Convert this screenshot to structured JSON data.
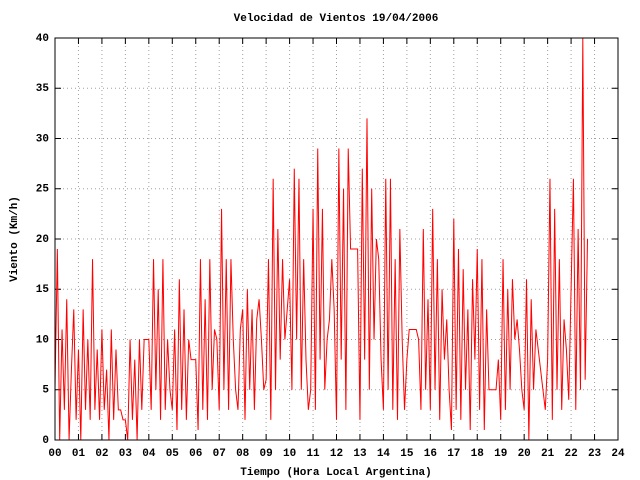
{
  "chart_data": {
    "type": "line",
    "title": "Velocidad de Vientos 19/04/2006",
    "x_label": "Tiempo (Hora Local Argentina)",
    "y_label": "Viento (Km/h)",
    "color": "#ff0000",
    "grid": true,
    "xlim": [
      0,
      24
    ],
    "ylim": [
      0,
      40
    ],
    "xticks": [
      {
        "value": 0,
        "label": "00"
      },
      {
        "value": 1,
        "label": "01"
      },
      {
        "value": 2,
        "label": "02"
      },
      {
        "value": 3,
        "label": "03"
      },
      {
        "value": 4,
        "label": "04"
      },
      {
        "value": 5,
        "label": "05"
      },
      {
        "value": 6,
        "label": "06"
      },
      {
        "value": 7,
        "label": "07"
      },
      {
        "value": 8,
        "label": "08"
      },
      {
        "value": 9,
        "label": "09"
      },
      10,
      11,
      12,
      13,
      14,
      15,
      16,
      17,
      18,
      19,
      20,
      21,
      22,
      23,
      24
    ],
    "yticks": [
      0,
      5,
      10,
      15,
      20,
      25,
      30,
      35,
      40
    ],
    "x": [
      0,
      0.1,
      0.2,
      0.3,
      0.4,
      0.5,
      0.6,
      0.7,
      0.8,
      0.9,
      1,
      1.1,
      1.2,
      1.3,
      1.4,
      1.5,
      1.6,
      1.7,
      1.8,
      1.9,
      2,
      2.1,
      2.2,
      2.3,
      2.4,
      2.5,
      2.6,
      2.7,
      2.8,
      2.9,
      3,
      3.1,
      3.2,
      3.3,
      3.4,
      3.5,
      3.6,
      3.7,
      3.8,
      3.9,
      4,
      4.1,
      4.2,
      4.3,
      4.4,
      4.5,
      4.6,
      4.7,
      4.8,
      4.9,
      5,
      5.1,
      5.2,
      5.3,
      5.4,
      5.5,
      5.6,
      5.7,
      5.8,
      5.9,
      6,
      6.1,
      6.2,
      6.3,
      6.4,
      6.5,
      6.6,
      6.7,
      6.8,
      6.9,
      7,
      7.1,
      7.2,
      7.3,
      7.4,
      7.5,
      7.6,
      7.7,
      7.8,
      7.9,
      8,
      8.1,
      8.2,
      8.3,
      8.4,
      8.5,
      8.6,
      8.7,
      8.8,
      8.9,
      9,
      9.1,
      9.2,
      9.3,
      9.4,
      9.5,
      9.6,
      9.7,
      9.8,
      9.9,
      10,
      10.1,
      10.2,
      10.3,
      10.4,
      10.5,
      10.6,
      10.7,
      10.8,
      10.9,
      11,
      11.1,
      11.2,
      11.3,
      11.4,
      11.5,
      11.6,
      11.7,
      11.8,
      11.9,
      12,
      12.1,
      12.2,
      12.3,
      12.4,
      12.5,
      12.6,
      12.7,
      12.8,
      12.9,
      13,
      13.1,
      13.2,
      13.3,
      13.4,
      13.5,
      13.6,
      13.7,
      13.8,
      13.9,
      14,
      14.1,
      14.2,
      14.3,
      14.4,
      14.5,
      14.6,
      14.7,
      14.8,
      14.9,
      15,
      15.1,
      15.2,
      15.3,
      15.4,
      15.5,
      15.6,
      15.7,
      15.8,
      15.9,
      16,
      16.1,
      16.2,
      16.3,
      16.4,
      16.5,
      16.6,
      16.7,
      16.8,
      16.9,
      17,
      17.1,
      17.2,
      17.3,
      17.4,
      17.5,
      17.6,
      17.7,
      17.8,
      17.9,
      18,
      18.1,
      18.2,
      18.3,
      18.4,
      18.5,
      18.6,
      18.7,
      18.8,
      18.9,
      19,
      19.1,
      19.2,
      19.3,
      19.4,
      19.5,
      19.6,
      19.7,
      19.8,
      19.9,
      20,
      20.1,
      20.2,
      20.3,
      20.4,
      20.5,
      20.6,
      20.7,
      20.8,
      20.9,
      21,
      21.1,
      21.2,
      21.3,
      21.4,
      21.5,
      21.6,
      21.7,
      21.8,
      21.9,
      22,
      22.1,
      22.2,
      22.3,
      22.4,
      22.5,
      22.6,
      22.7
    ],
    "values": [
      5,
      19,
      0,
      11,
      3,
      14,
      0,
      7,
      13,
      2,
      9,
      0,
      13,
      3,
      10,
      2,
      18,
      3,
      9,
      2,
      11,
      3,
      7,
      0,
      11,
      2,
      9,
      3,
      3,
      2,
      2,
      0,
      10,
      2,
      8,
      0,
      10,
      3,
      10,
      10,
      10,
      3,
      18,
      5,
      15,
      2,
      18,
      3,
      10,
      5,
      3,
      11,
      1,
      16,
      3,
      13,
      2,
      10,
      8,
      8,
      8,
      1,
      18,
      3,
      14,
      2,
      18,
      5,
      11,
      10,
      3,
      23,
      5,
      18,
      3,
      18,
      10,
      5,
      3,
      11,
      13,
      2,
      15,
      5,
      13,
      3,
      12,
      14,
      10,
      5,
      6,
      18,
      2,
      26,
      5,
      21,
      8,
      18,
      10,
      13,
      16,
      5,
      27,
      10,
      26,
      5,
      18,
      8,
      3,
      5,
      23,
      3,
      29,
      8,
      23,
      5,
      10,
      12,
      18,
      13,
      2,
      29,
      8,
      25,
      3,
      29,
      19,
      19,
      19,
      19,
      2,
      27,
      8,
      32,
      5,
      25,
      10,
      20,
      18,
      8,
      3,
      26,
      5,
      26,
      3,
      18,
      2,
      21,
      10,
      3,
      8,
      11,
      11,
      11,
      11,
      10,
      3,
      21,
      5,
      14,
      3,
      23,
      5,
      18,
      2,
      15,
      8,
      12,
      5,
      1,
      22,
      3,
      19,
      2,
      17,
      5,
      13,
      1,
      16,
      8,
      19,
      3,
      18,
      1,
      13,
      5,
      5,
      5,
      5,
      8,
      2,
      18,
      3,
      15,
      5,
      16,
      10,
      12,
      9,
      5,
      3,
      16,
      0,
      14,
      5,
      11,
      9,
      7,
      5,
      3,
      8,
      26,
      2,
      23,
      5,
      18,
      3,
      12,
      9,
      4,
      15,
      26,
      3,
      21,
      5,
      40,
      6,
      20
    ]
  }
}
